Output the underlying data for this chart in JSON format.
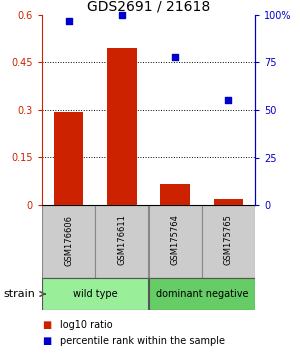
{
  "title": "GDS2691 / 21618",
  "samples": [
    "GSM176606",
    "GSM176611",
    "GSM175764",
    "GSM175765"
  ],
  "log10_ratios": [
    0.295,
    0.495,
    0.065,
    0.018
  ],
  "percentile_ranks": [
    97,
    100,
    78,
    55
  ],
  "groups": [
    {
      "label": "wild type",
      "indices": [
        0,
        1
      ],
      "color": "#99EE99"
    },
    {
      "label": "dominant negative",
      "indices": [
        2,
        3
      ],
      "color": "#66CC66"
    }
  ],
  "bar_color": "#CC2200",
  "scatter_color": "#0000CC",
  "ylim_left": [
    0,
    0.6
  ],
  "ylim_right": [
    0,
    100
  ],
  "yticks_left": [
    0,
    0.15,
    0.3,
    0.45,
    0.6
  ],
  "yticks_right": [
    0,
    25,
    50,
    75,
    100
  ],
  "ytick_labels_left": [
    "0",
    "0.15",
    "0.3",
    "0.45",
    "0.6"
  ],
  "ytick_labels_right": [
    "0",
    "25",
    "50",
    "75",
    "100%"
  ],
  "hlines": [
    0.15,
    0.3,
    0.45
  ],
  "left_axis_color": "#CC2200",
  "right_axis_color": "#0000CC",
  "legend_red_label": "log10 ratio",
  "legend_blue_label": "percentile rank within the sample",
  "strain_label": "strain",
  "sample_box_color": "#CCCCCC",
  "title_fontsize": 10,
  "tick_fontsize": 7,
  "sample_fontsize": 6,
  "group_fontsize": 7,
  "legend_fontsize": 7,
  "strain_fontsize": 8,
  "bar_width": 0.55
}
